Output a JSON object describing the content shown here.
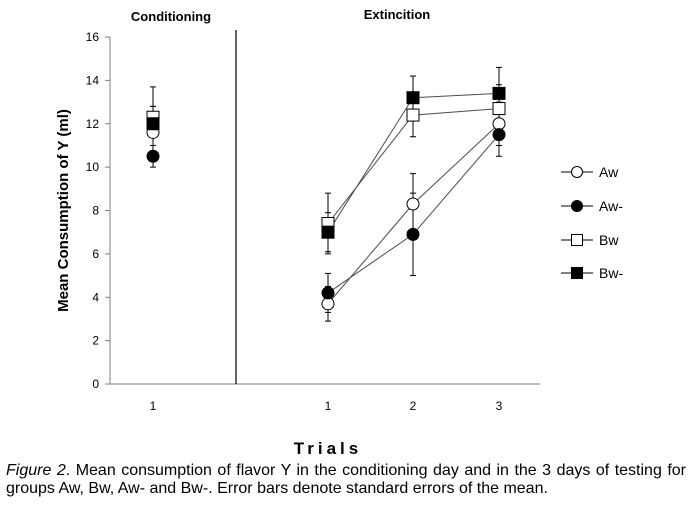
{
  "chart_data": {
    "type": "line",
    "ylabel": "Mean Consumption of Y (ml)",
    "xlabel": "Trials",
    "ylim": [
      0,
      16
    ],
    "yticks": [
      0,
      2,
      4,
      6,
      8,
      10,
      12,
      14,
      16
    ],
    "panels": [
      {
        "title": "Conditioning",
        "categories": [
          "1"
        ]
      },
      {
        "title": "Extincition",
        "categories": [
          "1",
          "2",
          "3"
        ]
      }
    ],
    "series": [
      {
        "name": "Aw",
        "marker": "circle-open",
        "conditioning": {
          "value": 11.6,
          "error": 1.2
        },
        "extinction": [
          3.7,
          8.3,
          12.0
        ],
        "errors": [
          0.8,
          1.4,
          1.0
        ]
      },
      {
        "name": "Aw-",
        "marker": "circle-filled",
        "conditioning": {
          "value": 10.5,
          "error": 0.5
        },
        "extinction": [
          4.2,
          6.9,
          11.5
        ],
        "errors": [
          0.9,
          1.9,
          1.0
        ]
      },
      {
        "name": "Bw",
        "marker": "square-open",
        "conditioning": {
          "value": 12.3,
          "error": 0.5
        },
        "extinction": [
          7.4,
          12.4,
          12.7
        ],
        "errors": [
          1.4,
          1.0,
          1.1
        ]
      },
      {
        "name": "Bw-",
        "marker": "square-filled",
        "conditioning": {
          "value": 12.0,
          "error": 1.7
        },
        "extinction": [
          7.0,
          13.2,
          13.4
        ],
        "errors": [
          0.9,
          1.0,
          1.2
        ]
      }
    ]
  },
  "caption": {
    "lead": "Figure 2",
    "text": ". Mean consumption of flavor Y in the conditioning day and in the 3 days of testing for groups Aw, Bw, Aw- and Bw-. Error bars denote standard errors of the mean."
  }
}
